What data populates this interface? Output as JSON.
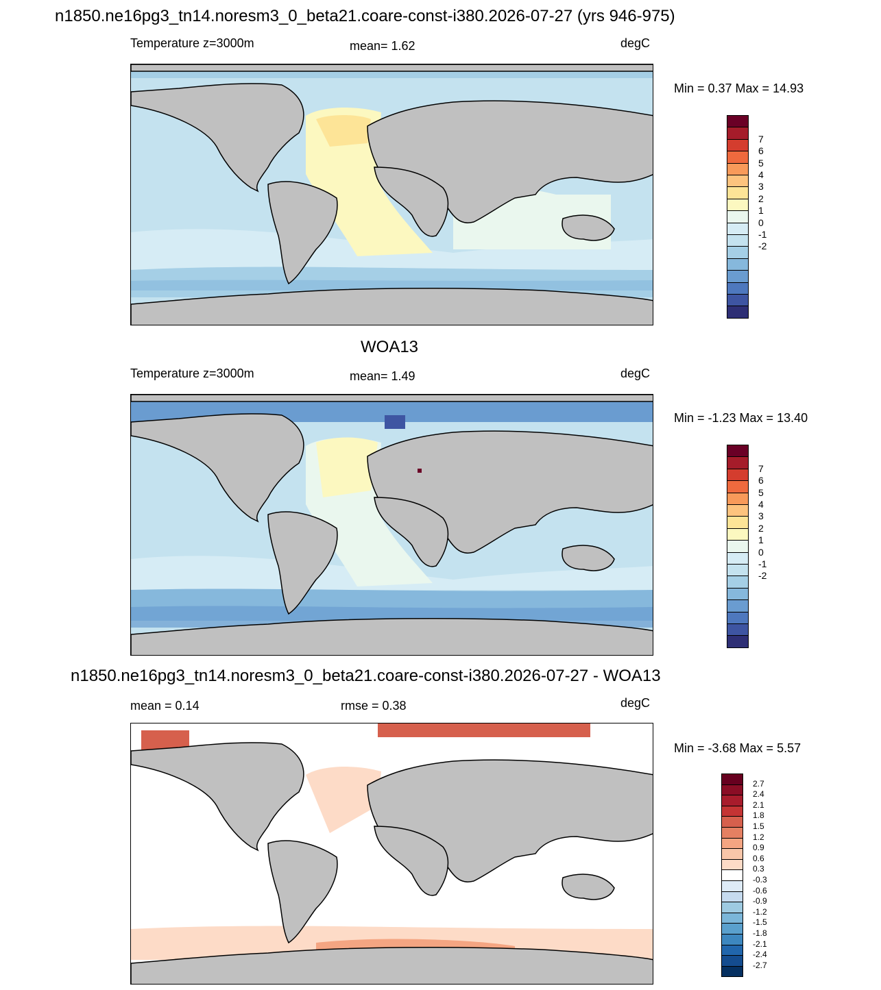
{
  "panel1": {
    "title": "n1850.ne16pg3_tn14.noresm3_0_beta21.coare-const-i380.2026-07-27 (yrs 946-975)",
    "left_text": "Temperature z=3000m",
    "center_text": "mean=   1.62",
    "units": "degC",
    "minmax": "Min =   0.37 Max =  14.93",
    "colorbar_labels": [
      "7",
      "6",
      "5",
      "4",
      "3",
      "2",
      "1",
      "0",
      "-1",
      "-2"
    ],
    "colors": [
      "#6a0026",
      "#a51c2a",
      "#d43d2e",
      "#ef6a3e",
      "#f89a5a",
      "#fdc37e",
      "#fde497",
      "#fcf8c0",
      "#eaf7ee",
      "#d6ecf5",
      "#c4e2ef",
      "#a5cfe6",
      "#86b8dc",
      "#6a9cd0",
      "#4e78be",
      "#3e55a2",
      "#2e2f75"
    ]
  },
  "panel2": {
    "title": "WOA13",
    "left_text": "Temperature z=3000m",
    "center_text": "mean=   1.49",
    "units": "degC",
    "minmax": "Min =  -1.23 Max =  13.40",
    "colorbar_labels": [
      "7",
      "6",
      "5",
      "4",
      "3",
      "2",
      "1",
      "0",
      "-1",
      "-2"
    ],
    "colors": [
      "#6a0026",
      "#a51c2a",
      "#d43d2e",
      "#ef6a3e",
      "#f89a5a",
      "#fdc37e",
      "#fde497",
      "#fcf8c0",
      "#eaf7ee",
      "#d6ecf5",
      "#c4e2ef",
      "#a5cfe6",
      "#86b8dc",
      "#6a9cd0",
      "#4e78be",
      "#3e55a2",
      "#2e2f75"
    ]
  },
  "panel3": {
    "title": "n1850.ne16pg3_tn14.noresm3_0_beta21.coare-const-i380.2026-07-27 - WOA13",
    "left_text": "mean =   0.14",
    "center_text": "rmse =   0.38",
    "units": "degC",
    "minmax": "Min =  -3.68 Max =   5.57",
    "colorbar_labels": [
      "2.7",
      "2.4",
      "2.1",
      "1.8",
      "1.5",
      "1.2",
      "0.9",
      "0.6",
      "0.3",
      "-0.3",
      "-0.6",
      "-0.9",
      "-1.2",
      "-1.5",
      "-1.8",
      "-2.1",
      "-2.4",
      "-2.7"
    ],
    "colors": [
      "#67001f",
      "#8a0d25",
      "#a81c2c",
      "#c43434",
      "#d6604d",
      "#e58062",
      "#f4a582",
      "#f9c6a9",
      "#fddbc7",
      "#ffffff",
      "#deebf7",
      "#c6dbef",
      "#9ecae1",
      "#7bb6d9",
      "#5aa0cd",
      "#3d87bf",
      "#2166ac",
      "#144c8f",
      "#053061"
    ]
  },
  "map_colors": {
    "land": "#c0c0c0",
    "coast": "#000000"
  }
}
